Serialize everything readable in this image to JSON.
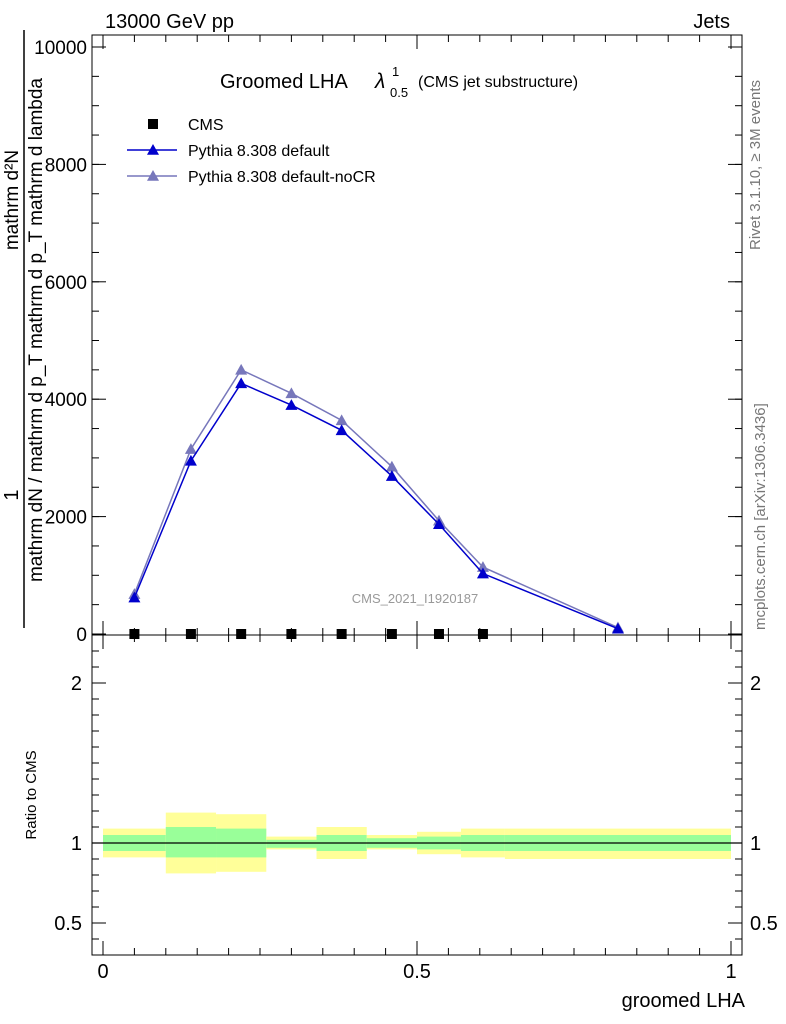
{
  "header": {
    "left": "13000 GeV pp",
    "right": "Jets"
  },
  "side_labels": {
    "rivet": "Rivet 3.1.10, ≥ 3M events",
    "mcplots": "mcplots.cern.ch [arXiv:1306.3436]"
  },
  "chart_data": [
    {
      "type": "line",
      "title": "Groomed LHA",
      "title_symbol": "λ",
      "title_sup": "1",
      "title_sub": "0.5",
      "title_suffix": "(CMS jet substructure)",
      "watermark": "CMS_2021_I1920187",
      "ylabel_numerator": "1",
      "ylabel_denominator": "mathrm dN / mathrm d p_T mathrm d p_T mathrm d lambda",
      "ylabel_top": "mathrm d²N",
      "xlim": [
        0,
        1
      ],
      "ylim": [
        0,
        10000
      ],
      "yticks": [
        0,
        2000,
        4000,
        6000,
        8000,
        10000
      ],
      "ytick_labels": [
        "0",
        "2000",
        "4000",
        "6000",
        "8000",
        "10000"
      ],
      "legend_position": "top-left",
      "series": [
        {
          "name": "CMS",
          "marker": "square",
          "color": "#000000",
          "x": [
            0.05,
            0.14,
            0.22,
            0.3,
            0.38,
            0.46,
            0.535,
            0.605
          ],
          "y": [
            0,
            0,
            0,
            0,
            0,
            0,
            0,
            0
          ]
        },
        {
          "name": "Pythia 8.308 default",
          "marker": "triangle",
          "color": "#0000cc",
          "x": [
            0.05,
            0.14,
            0.22,
            0.3,
            0.38,
            0.46,
            0.535,
            0.605,
            0.82
          ],
          "y": [
            620,
            2950,
            4270,
            3900,
            3470,
            2690,
            1870,
            1030,
            90
          ]
        },
        {
          "name": "Pythia 8.308 default-noCR",
          "marker": "triangle",
          "color": "#7777bb",
          "x": [
            0.05,
            0.14,
            0.22,
            0.3,
            0.38,
            0.46,
            0.535,
            0.605,
            0.82
          ],
          "y": [
            680,
            3150,
            4500,
            4100,
            3640,
            2850,
            1930,
            1140,
            110
          ]
        }
      ]
    },
    {
      "type": "area",
      "ylabel": "Ratio to CMS",
      "xlabel": "groomed LHA",
      "xlim": [
        0,
        1
      ],
      "ylim": [
        0.3,
        2.3
      ],
      "yticks": [
        0.5,
        1,
        2
      ],
      "ytick_labels": [
        "0.5",
        "1",
        "2"
      ],
      "xticks": [
        0,
        0.5,
        1
      ],
      "xtick_labels": [
        "0",
        "0.5",
        "1"
      ],
      "reference_line": 1,
      "bands": [
        {
          "x0": 0.0,
          "x1": 0.1,
          "inner": [
            0.95,
            1.05
          ],
          "outer": [
            0.91,
            1.09
          ]
        },
        {
          "x0": 0.1,
          "x1": 0.18,
          "inner": [
            0.91,
            1.1
          ],
          "outer": [
            0.81,
            1.19
          ]
        },
        {
          "x0": 0.18,
          "x1": 0.26,
          "inner": [
            0.91,
            1.09
          ],
          "outer": [
            0.82,
            1.18
          ]
        },
        {
          "x0": 0.26,
          "x1": 0.34,
          "inner": [
            0.97,
            1.02
          ],
          "outer": [
            0.96,
            1.04
          ]
        },
        {
          "x0": 0.34,
          "x1": 0.42,
          "inner": [
            0.95,
            1.05
          ],
          "outer": [
            0.9,
            1.1
          ]
        },
        {
          "x0": 0.42,
          "x1": 0.5,
          "inner": [
            0.97,
            1.03
          ],
          "outer": [
            0.96,
            1.05
          ]
        },
        {
          "x0": 0.5,
          "x1": 0.57,
          "inner": [
            0.96,
            1.04
          ],
          "outer": [
            0.93,
            1.07
          ]
        },
        {
          "x0": 0.57,
          "x1": 0.64,
          "inner": [
            0.95,
            1.05
          ],
          "outer": [
            0.91,
            1.09
          ]
        },
        {
          "x0": 0.64,
          "x1": 1.0,
          "inner": [
            0.95,
            1.05
          ],
          "outer": [
            0.9,
            1.09
          ]
        }
      ],
      "colors": {
        "inner": "#99ff99",
        "outer": "#ffff99"
      }
    }
  ]
}
